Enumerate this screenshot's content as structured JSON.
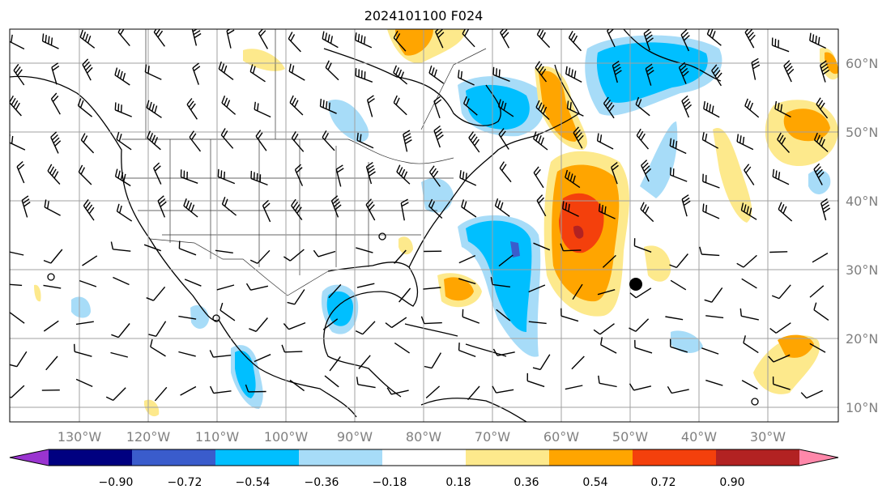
{
  "title": "2024101100 F024",
  "lon_labels": [
    "130°W",
    "120°W",
    "110°W",
    "100°W",
    "90°W",
    "80°W",
    "70°W",
    "60°W",
    "50°W",
    "40°W",
    "30°W"
  ],
  "lat_labels": [
    "60°N",
    "50°N",
    "40°N",
    "30°N",
    "20°N",
    "10°N"
  ],
  "colorbar": {
    "colors": [
      "#9a34d0",
      "#000080",
      "#3a5ccc",
      "#00bfff",
      "#a7dcf8",
      "#ffffff",
      "#fde98c",
      "#ffa500",
      "#f4400c",
      "#b22222",
      "#ff88aa"
    ],
    "ticks": [
      "−0.90",
      "−0.72",
      "−0.54",
      "−0.36",
      "−0.18",
      "0.18",
      "0.36",
      "0.54",
      "0.72",
      "0.90"
    ]
  },
  "colors": {
    "land_outline": "#000000",
    "border": "#333333",
    "grid": "#a0a0a0"
  }
}
